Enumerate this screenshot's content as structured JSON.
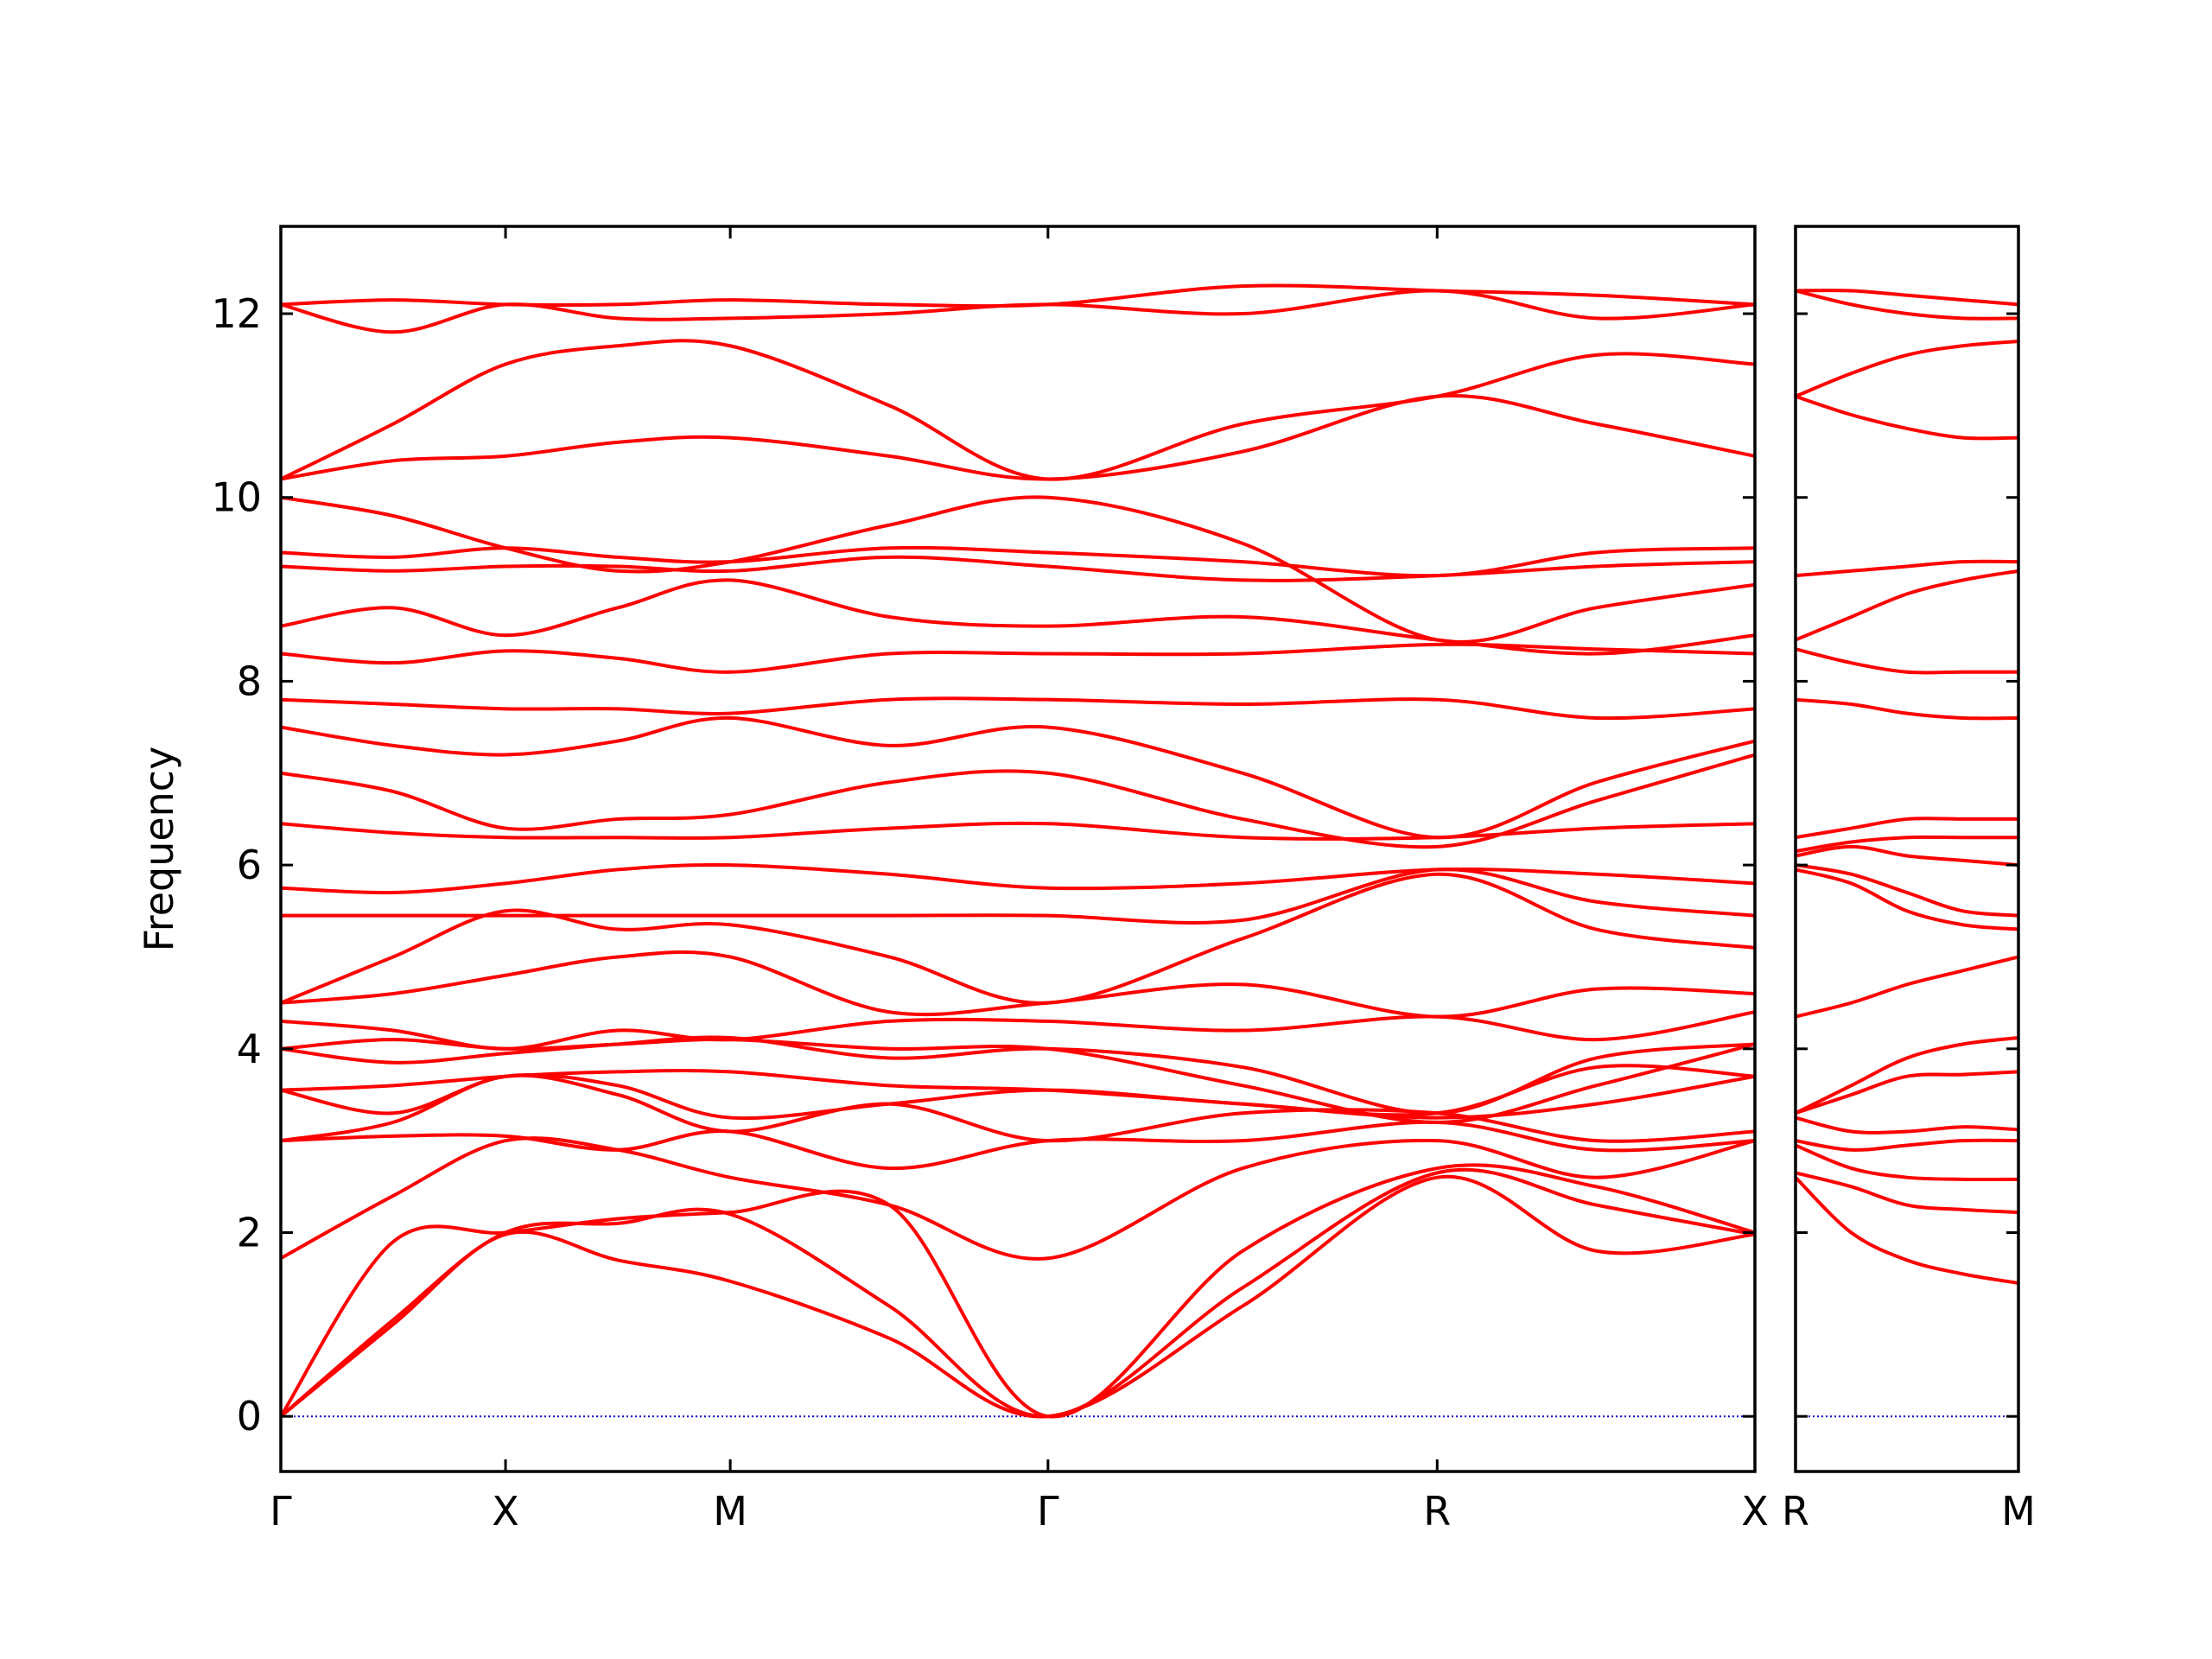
{
  "chart_data": [
    {
      "type": "line",
      "ylabel": "Frequency",
      "color": "#ff0000",
      "hline": 0,
      "hline_color": "#0000cc",
      "ytick_labels": true,
      "x": [
        0,
        0.25,
        0.5,
        0.75,
        1.0,
        1.354,
        1.707,
        2.14,
        2.573,
        2.927,
        3.28
      ],
      "xlim": [
        0,
        3.28
      ],
      "xticks": [
        {
          "value": 0,
          "label": "Γ"
        },
        {
          "value": 0.5,
          "label": "X"
        },
        {
          "value": 1.0,
          "label": "M"
        },
        {
          "value": 1.707,
          "label": "Γ"
        },
        {
          "value": 2.573,
          "label": "R"
        },
        {
          "value": 3.28,
          "label": "X"
        }
      ],
      "ylim": [
        -0.6,
        12.95
      ],
      "yticks": [
        0,
        2,
        4,
        6,
        8,
        10,
        12
      ],
      "series": [
        {
          "values": [
            0,
            1.0,
            1.98,
            1.7,
            1.47,
            0.85,
            0,
            1.2,
            2.6,
            1.8,
            1.98
          ]
        },
        {
          "values": [
            0,
            1.05,
            2.0,
            2.1,
            2.2,
            1.2,
            0,
            1.4,
            2.65,
            2.3,
            1.98
          ]
        },
        {
          "values": [
            0,
            1.9,
            2.0,
            2.15,
            2.22,
            2.3,
            0,
            1.8,
            2.7,
            2.5,
            2.0
          ]
        },
        {
          "values": [
            1.72,
            2.4,
            3.0,
            2.9,
            2.6,
            2.3,
            1.72,
            2.7,
            3.0,
            2.6,
            3.0
          ]
        },
        {
          "values": [
            3.0,
            3.05,
            3.05,
            2.9,
            3.1,
            2.7,
            3.0,
            3.0,
            3.2,
            2.9,
            3.0
          ]
        },
        {
          "values": [
            3.0,
            3.2,
            3.7,
            3.5,
            3.1,
            3.4,
            3.0,
            3.3,
            3.3,
            3.0,
            3.1
          ]
        },
        {
          "values": [
            3.55,
            3.6,
            3.7,
            3.75,
            3.75,
            3.6,
            3.55,
            3.4,
            3.25,
            3.4,
            3.7
          ]
        },
        {
          "values": [
            3.55,
            3.3,
            3.7,
            3.6,
            3.25,
            3.4,
            3.55,
            3.4,
            3.3,
            3.8,
            3.7
          ]
        },
        {
          "values": [
            4.0,
            3.85,
            3.95,
            4.05,
            4.12,
            3.9,
            4.0,
            3.8,
            3.3,
            3.9,
            4.05
          ]
        },
        {
          "values": [
            4.0,
            4.1,
            4.0,
            4.05,
            4.1,
            4.0,
            4.0,
            3.6,
            3.2,
            3.6,
            4.05
          ]
        },
        {
          "values": [
            4.3,
            4.2,
            4.0,
            4.2,
            4.1,
            4.3,
            4.3,
            4.2,
            4.35,
            4.1,
            4.4
          ]
        },
        {
          "values": [
            4.5,
            4.6,
            4.8,
            5.0,
            5.0,
            4.4,
            4.5,
            4.7,
            4.35,
            4.65,
            4.6
          ]
        },
        {
          "values": [
            4.5,
            5.0,
            5.5,
            5.3,
            5.35,
            5.0,
            4.5,
            5.2,
            5.9,
            5.3,
            5.1
          ]
        },
        {
          "values": [
            5.45,
            5.45,
            5.45,
            5.45,
            5.45,
            5.45,
            5.45,
            5.4,
            5.95,
            5.6,
            5.45
          ]
        },
        {
          "values": [
            5.75,
            5.7,
            5.8,
            5.95,
            6.0,
            5.9,
            5.75,
            5.8,
            5.95,
            5.9,
            5.8
          ]
        },
        {
          "values": [
            6.45,
            6.35,
            6.3,
            6.3,
            6.3,
            6.4,
            6.45,
            6.3,
            6.3,
            6.4,
            6.45
          ]
        },
        {
          "values": [
            7.0,
            6.8,
            6.4,
            6.5,
            6.55,
            6.9,
            7.0,
            6.5,
            6.2,
            6.7,
            7.2
          ]
        },
        {
          "values": [
            7.5,
            7.3,
            7.2,
            7.35,
            7.6,
            7.3,
            7.5,
            7.0,
            6.3,
            6.9,
            7.35
          ]
        },
        {
          "values": [
            7.8,
            7.75,
            7.7,
            7.7,
            7.65,
            7.8,
            7.8,
            7.75,
            7.8,
            7.6,
            7.7
          ]
        },
        {
          "values": [
            8.3,
            8.2,
            8.33,
            8.25,
            8.1,
            8.3,
            8.3,
            8.3,
            8.4,
            8.35,
            8.3
          ]
        },
        {
          "values": [
            8.6,
            8.8,
            8.5,
            8.8,
            9.1,
            8.7,
            8.6,
            8.7,
            8.45,
            8.3,
            8.5
          ]
        },
        {
          "values": [
            9.25,
            9.2,
            9.25,
            9.25,
            9.2,
            9.35,
            9.25,
            9.1,
            9.15,
            9.25,
            9.3
          ]
        },
        {
          "values": [
            9.4,
            9.35,
            9.45,
            9.35,
            9.3,
            9.45,
            9.4,
            9.3,
            9.15,
            9.4,
            9.45
          ]
        },
        {
          "values": [
            10.0,
            9.8,
            9.45,
            9.2,
            9.3,
            9.7,
            10.0,
            9.5,
            8.45,
            8.8,
            9.05
          ]
        },
        {
          "values": [
            10.2,
            10.4,
            10.45,
            10.6,
            10.65,
            10.45,
            10.2,
            10.5,
            11.1,
            10.8,
            10.45
          ]
        },
        {
          "values": [
            10.2,
            10.8,
            11.45,
            11.65,
            11.65,
            11.0,
            10.2,
            10.8,
            11.1,
            11.55,
            11.45
          ]
        },
        {
          "values": [
            12.1,
            11.8,
            12.1,
            11.95,
            11.95,
            12.0,
            12.1,
            12.0,
            12.25,
            11.95,
            12.1
          ]
        },
        {
          "values": [
            12.1,
            12.15,
            12.1,
            12.1,
            12.15,
            12.1,
            12.1,
            12.3,
            12.25,
            12.2,
            12.1
          ]
        }
      ]
    },
    {
      "type": "line",
      "color": "#ff0000",
      "hline": 0,
      "hline_color": "#0000cc",
      "ytick_labels": false,
      "x": [
        0,
        0.125,
        0.25,
        0.375,
        0.5
      ],
      "xlim": [
        0,
        0.5
      ],
      "xticks": [
        {
          "value": 0,
          "label": "R"
        },
        {
          "value": 0.5,
          "label": "M"
        }
      ],
      "ylim": [
        -0.6,
        12.95
      ],
      "yticks": [
        0,
        2,
        4,
        6,
        8,
        10,
        12
      ],
      "series": [
        {
          "values": [
            2.6,
            2.0,
            1.7,
            1.55,
            1.45
          ]
        },
        {
          "values": [
            2.65,
            2.5,
            2.3,
            2.25,
            2.22
          ]
        },
        {
          "values": [
            2.95,
            2.7,
            2.6,
            2.58,
            2.58
          ]
        },
        {
          "values": [
            3.0,
            2.9,
            2.95,
            3.0,
            3.0
          ]
        },
        {
          "values": [
            3.25,
            3.1,
            3.1,
            3.15,
            3.12
          ]
        },
        {
          "values": [
            3.3,
            3.5,
            3.7,
            3.72,
            3.75
          ]
        },
        {
          "values": [
            3.3,
            3.6,
            3.9,
            4.05,
            4.12
          ]
        },
        {
          "values": [
            4.35,
            4.5,
            4.7,
            4.85,
            5.0
          ]
        },
        {
          "values": [
            5.95,
            5.8,
            5.5,
            5.35,
            5.3
          ]
        },
        {
          "values": [
            6.0,
            5.9,
            5.7,
            5.5,
            5.45
          ]
        },
        {
          "values": [
            6.1,
            6.2,
            6.1,
            6.05,
            6.0
          ]
        },
        {
          "values": [
            6.3,
            6.4,
            6.5,
            6.5,
            6.5
          ]
        },
        {
          "values": [
            6.15,
            6.25,
            6.3,
            6.3,
            6.3
          ]
        },
        {
          "values": [
            7.8,
            7.75,
            7.65,
            7.6,
            7.6
          ]
        },
        {
          "values": [
            8.35,
            8.2,
            8.1,
            8.1,
            8.1
          ]
        },
        {
          "values": [
            8.45,
            8.7,
            8.95,
            9.1,
            9.2
          ]
        },
        {
          "values": [
            9.15,
            9.2,
            9.25,
            9.3,
            9.3
          ]
        },
        {
          "values": [
            11.1,
            10.9,
            10.75,
            10.65,
            10.65
          ]
        },
        {
          "values": [
            11.1,
            11.35,
            11.55,
            11.65,
            11.7
          ]
        },
        {
          "values": [
            12.25,
            12.1,
            12.0,
            11.95,
            11.95
          ]
        },
        {
          "values": [
            12.25,
            12.25,
            12.2,
            12.15,
            12.1
          ]
        }
      ]
    }
  ]
}
